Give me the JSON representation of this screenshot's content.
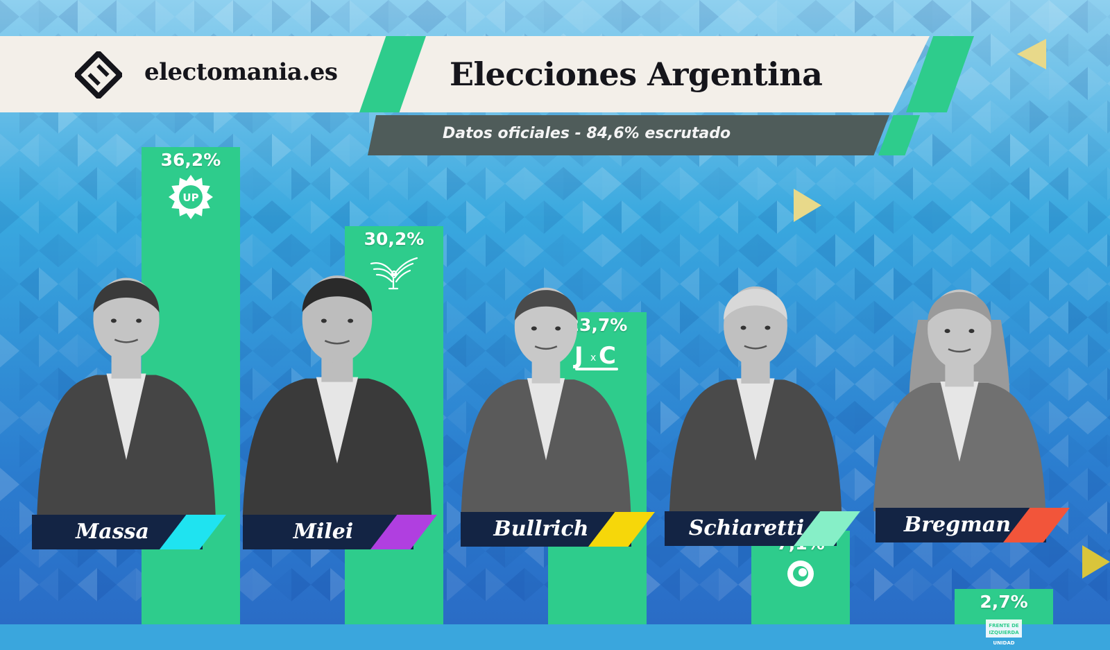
{
  "header": {
    "site_name": "electomania.es",
    "title": "Elecciones Argentina",
    "subtitle": "Datos oficiales - 84,6% escrutado"
  },
  "colors": {
    "bar": "#2ecc8c",
    "banner_bg": "#f3efe9",
    "subtitle_bg": "#4f5c5a",
    "name_plate": "#132444",
    "background": "#3aa6dd"
  },
  "chart_data": {
    "type": "bar",
    "title": "Elecciones Argentina",
    "subtitle": "Datos oficiales - 84,6% escrutado",
    "categories": [
      "Massa",
      "Milei",
      "Bullrich",
      "Schiaretti",
      "Bregman"
    ],
    "values": [
      36.2,
      30.2,
      23.7,
      7.1,
      2.7
    ],
    "value_labels": [
      "36,2%",
      "30,2%",
      "23,7%",
      "7,1%",
      "2,7%"
    ],
    "unit": "%",
    "ylim": [
      0,
      40
    ],
    "grid": false,
    "legend": "none",
    "candidates": [
      {
        "name": "Massa",
        "value_label": "36,2%",
        "party_icon": "up-starburst-logo-icon",
        "party_color": "#1fe3f0"
      },
      {
        "name": "Milei",
        "value_label": "30,2%",
        "party_icon": "eagle-logo-icon",
        "party_color": "#b03fe0"
      },
      {
        "name": "Bullrich",
        "value_label": "23,7%",
        "party_icon": "jxc-logo-icon",
        "party_color": "#f6d70a"
      },
      {
        "name": "Schiaretti",
        "value_label": "7,1%",
        "party_icon": "hacemos-circle-logo-icon",
        "party_color": "#86efc7"
      },
      {
        "name": "Bregman",
        "value_label": "2,7%",
        "party_icon": "frente-izquierda-logo-icon",
        "party_color": "#f2553a"
      }
    ]
  },
  "logo_texts": {
    "up": "UP",
    "fit": "FRENTE DE IZQUIERDA",
    "fit_sub": "UNIDAD"
  }
}
